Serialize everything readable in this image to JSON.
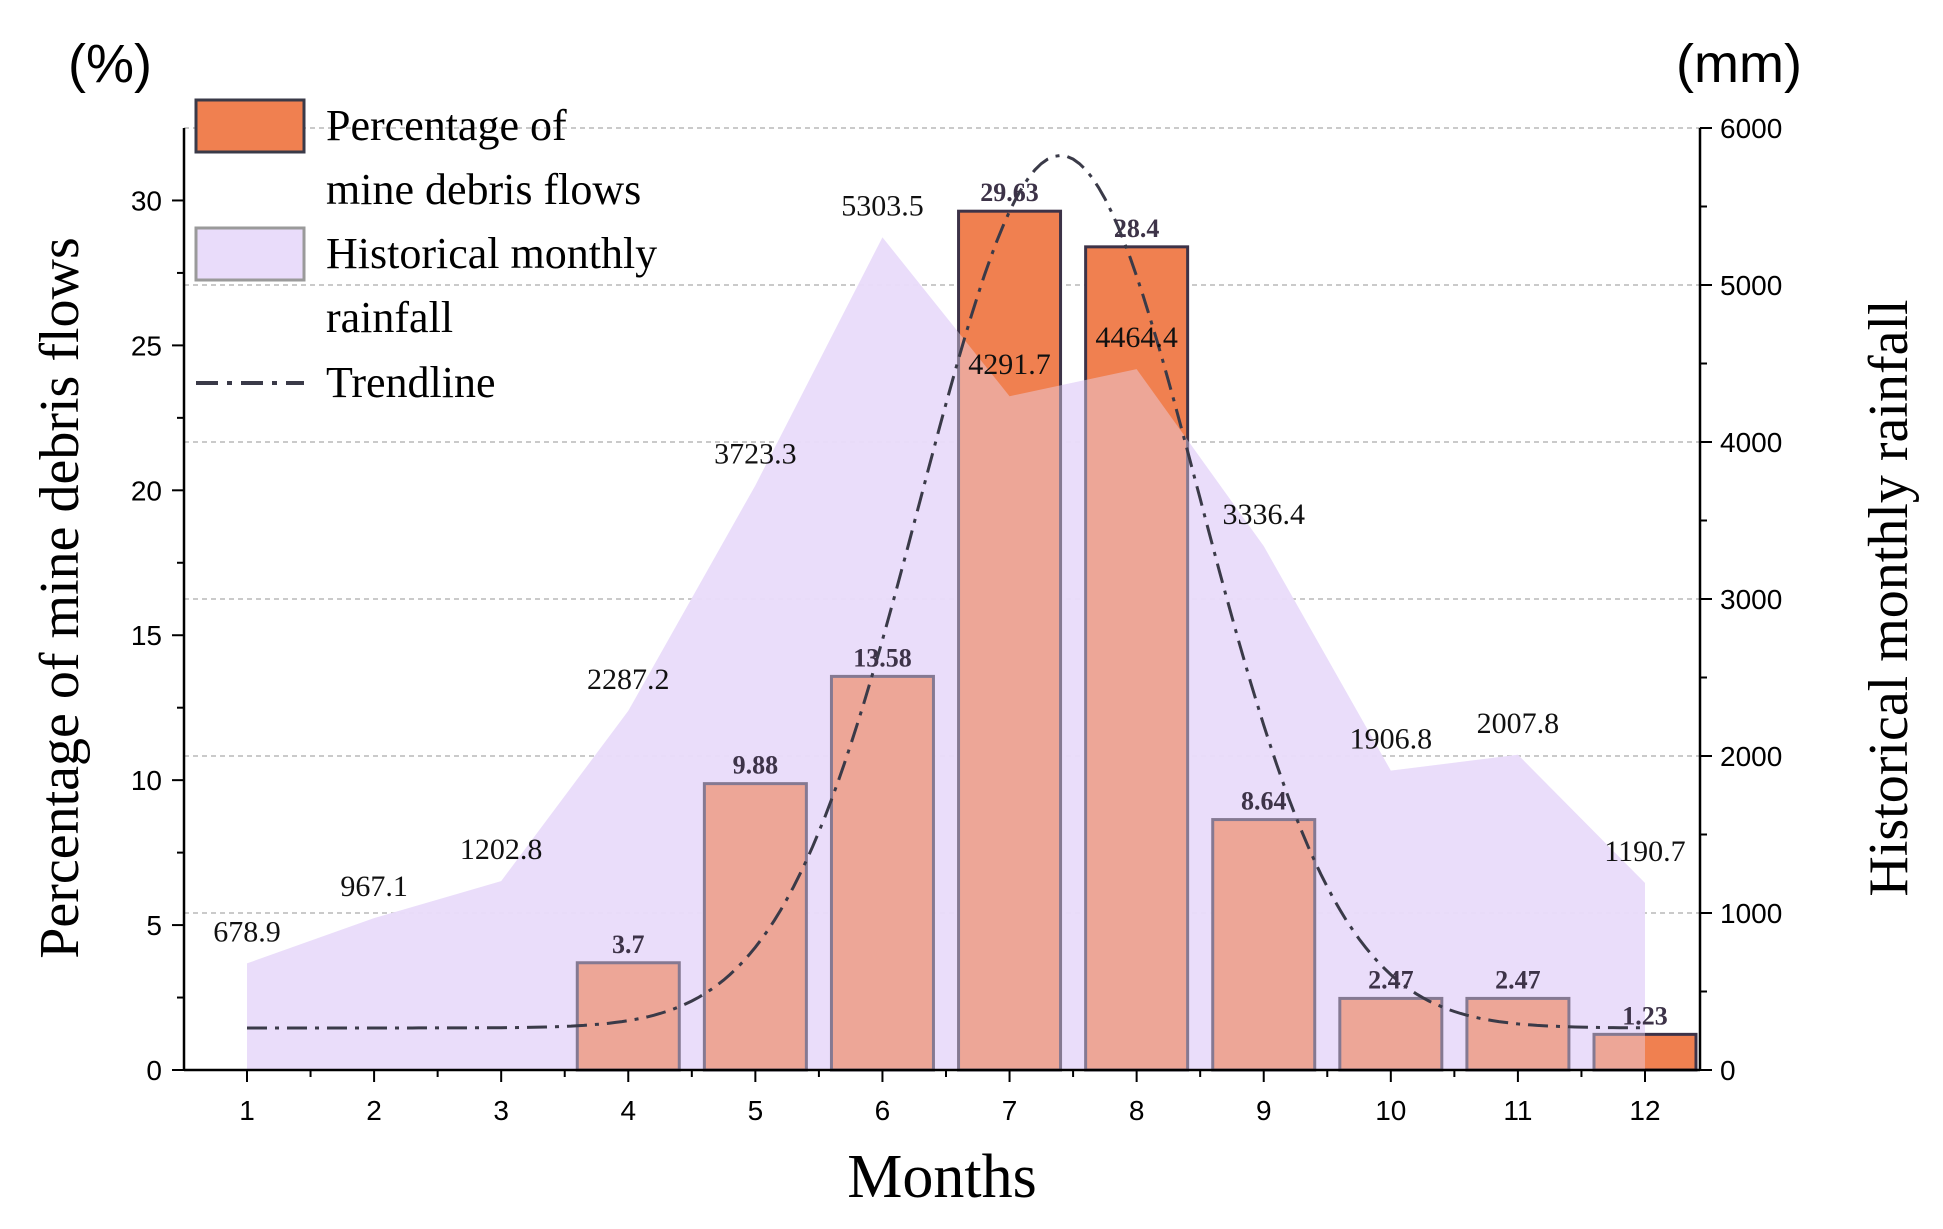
{
  "chart_data": {
    "type": "bar",
    "title": "",
    "xlabel": "Months",
    "ylabel_left": "Percentage of mine debris flows",
    "ylabel_right": "Historical monthly rainfall",
    "unit_left": "(%)",
    "unit_right": "(mm)",
    "categories": [
      "1",
      "2",
      "3",
      "4",
      "5",
      "6",
      "7",
      "8",
      "9",
      "10",
      "11",
      "12"
    ],
    "ylim_left": [
      0,
      32.5
    ],
    "ylim_right": [
      0,
      6000
    ],
    "yticks_left": [
      "0",
      "5",
      "10",
      "15",
      "20",
      "25",
      "30"
    ],
    "yticks_right": [
      "0",
      "1000",
      "2000",
      "3000",
      "4000",
      "5000",
      "6000"
    ],
    "grid": "horizontal-dashed-right-axis",
    "legend_position": "top-left",
    "series": [
      {
        "name": "Percentage of mine debris flows",
        "kind": "bar",
        "axis": "left",
        "color": "#f08050",
        "values": [
          null,
          null,
          null,
          3.7,
          9.88,
          13.58,
          29.63,
          28.4,
          8.64,
          2.47,
          2.47,
          1.23
        ],
        "labels": [
          "",
          "",
          "",
          "3.7",
          "9.88",
          "13.58",
          "29.63",
          "28.4",
          "8.64",
          "2.47",
          "2.47",
          "1.23"
        ]
      },
      {
        "name": "Historical monthly rainfall",
        "kind": "area",
        "axis": "right",
        "color": "#e9dcfa",
        "values": [
          678.9,
          967.1,
          1202.8,
          2287.2,
          3723.3,
          5303.5,
          4291.7,
          4464.4,
          3336.4,
          1906.8,
          2007.8,
          1190.7
        ],
        "labels": [
          "678.9",
          "967.1",
          "1202.8",
          "2287.2",
          "3723.3",
          "5303.5",
          "4291.7",
          "4464.4",
          "3336.4",
          "1906.8",
          "2007.8",
          "1190.7"
        ]
      },
      {
        "name": "Trendline",
        "kind": "line",
        "axis": "left",
        "style": "dash-dot",
        "color": "#3a3a48",
        "model": "gaussian",
        "baseline": 1.45,
        "amplitude": 30.1,
        "center": 7.4,
        "sigma": 1.1
      }
    ],
    "legend": [
      {
        "label_line1": "Percentage of",
        "label_line2": "mine debris flows",
        "swatch": "bar"
      },
      {
        "label_line1": "Historical monthly",
        "label_line2": "rainfall",
        "swatch": "area"
      },
      {
        "label_line1": "Trendline",
        "label_line2": "",
        "swatch": "line"
      }
    ]
  }
}
